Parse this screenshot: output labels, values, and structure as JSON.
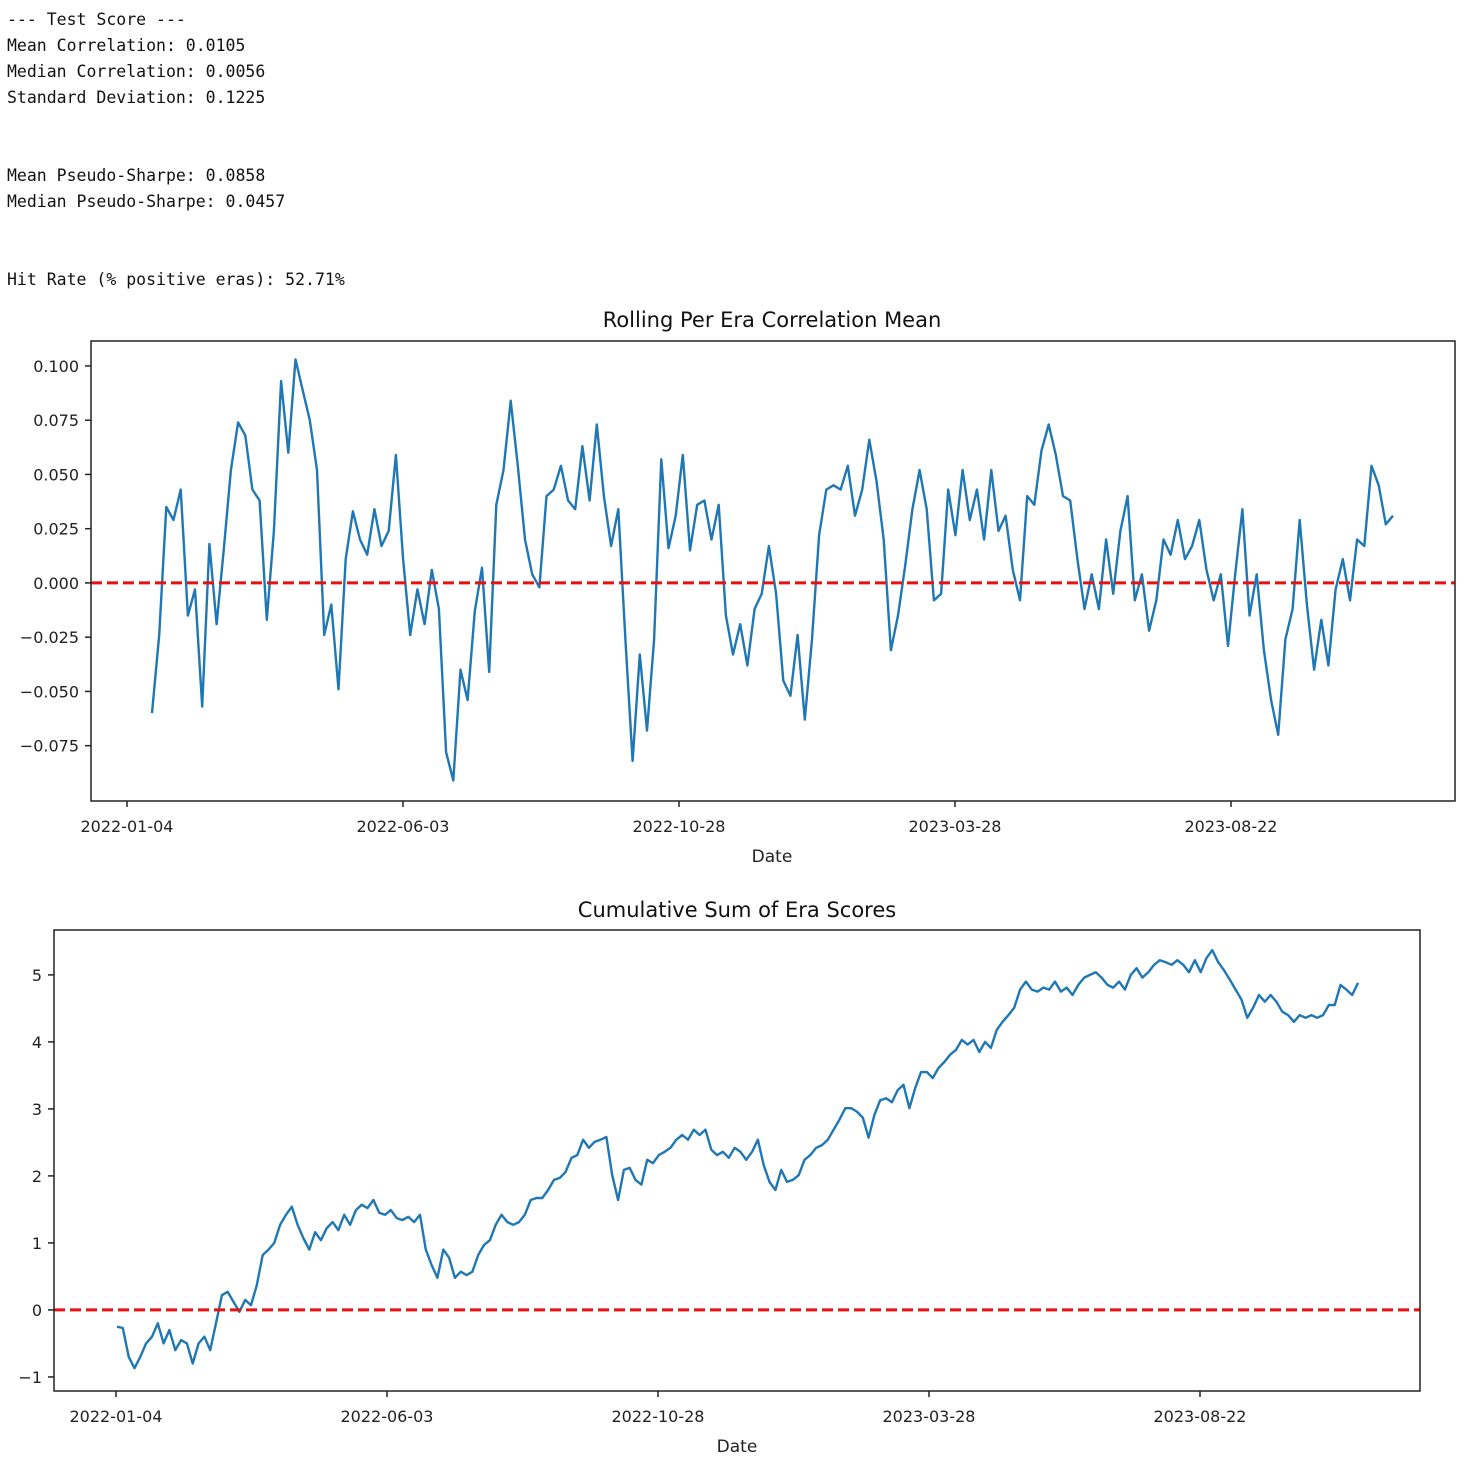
{
  "output_lines": [
    "--- Test Score ---",
    "Mean Correlation: 0.0105",
    "Median Correlation: 0.0056",
    "Standard Deviation: 0.1225",
    "",
    "",
    "Mean Pseudo-Sharpe: 0.0858",
    "Median Pseudo-Sharpe: 0.0457",
    "",
    "",
    "Hit Rate (% positive eras): 52.71%"
  ],
  "colors": {
    "line": "#1f77b4",
    "zero_line": "#e8110f",
    "axes": "#222222"
  },
  "chart_data": [
    {
      "type": "line",
      "title": "Rolling Per Era Correlation Mean",
      "xlabel": "Date",
      "ylabel": "",
      "ylim": [
        -0.1005,
        0.1115
      ],
      "x_ticks": [
        "2022-01-04",
        "2022-06-03",
        "2022-10-28",
        "2023-03-28",
        "2023-08-22"
      ],
      "y_ticks": [
        -0.075,
        -0.05,
        -0.025,
        0.0,
        0.025,
        0.05,
        0.075,
        0.1
      ],
      "y_tick_labels": [
        "−0.075",
        "−0.050",
        "−0.025",
        "0.000",
        "0.025",
        "0.050",
        "0.075",
        "0.100"
      ],
      "reference_line": {
        "y": 0,
        "style": "dashed",
        "color": "red"
      },
      "grid": false,
      "values": [
        -0.06,
        -0.024,
        0.035,
        0.029,
        0.043,
        -0.015,
        -0.003,
        -0.057,
        0.018,
        -0.019,
        0.015,
        0.052,
        0.074,
        0.068,
        0.043,
        0.038,
        -0.017,
        0.024,
        0.093,
        0.06,
        0.103,
        0.089,
        0.075,
        0.052,
        -0.024,
        -0.01,
        -0.049,
        0.011,
        0.033,
        0.02,
        0.013,
        0.034,
        0.017,
        0.024,
        0.059,
        0.011,
        -0.024,
        -0.003,
        -0.019,
        0.006,
        -0.012,
        -0.078,
        -0.091,
        -0.04,
        -0.054,
        -0.013,
        0.007,
        -0.041,
        0.036,
        0.052,
        0.084,
        0.054,
        0.02,
        0.004,
        -0.002,
        0.04,
        0.043,
        0.054,
        0.038,
        0.034,
        0.063,
        0.038,
        0.073,
        0.04,
        0.017,
        0.034,
        -0.026,
        -0.082,
        -0.033,
        -0.068,
        -0.026,
        0.057,
        0.016,
        0.031,
        0.059,
        0.015,
        0.036,
        0.038,
        0.02,
        0.036,
        -0.015,
        -0.033,
        -0.019,
        -0.038,
        -0.012,
        -0.005,
        0.017,
        -0.005,
        -0.045,
        -0.052,
        -0.024,
        -0.063,
        -0.026,
        0.022,
        0.043,
        0.045,
        0.043,
        0.054,
        0.031,
        0.043,
        0.066,
        0.047,
        0.02,
        -0.031,
        -0.015,
        0.008,
        0.034,
        0.052,
        0.034,
        -0.008,
        -0.005,
        0.043,
        0.022,
        0.052,
        0.029,
        0.043,
        0.02,
        0.052,
        0.024,
        0.031,
        0.006,
        -0.008,
        0.04,
        0.036,
        0.061,
        0.073,
        0.059,
        0.04,
        0.038,
        0.011,
        -0.012,
        0.004,
        -0.012,
        0.02,
        -0.005,
        0.024,
        0.04,
        -0.008,
        0.004,
        -0.022,
        -0.008,
        0.02,
        0.013,
        0.029,
        0.011,
        0.017,
        0.029,
        0.006,
        -0.008,
        0.004,
        -0.029,
        0.004,
        0.034,
        -0.015,
        0.004,
        -0.031,
        -0.054,
        -0.07,
        -0.026,
        -0.012,
        0.029,
        -0.01,
        -0.04,
        -0.017,
        -0.038,
        -0.003,
        0.011,
        -0.008,
        0.02,
        0.017,
        0.054,
        0.045,
        0.027,
        0.031
      ]
    },
    {
      "type": "line",
      "title": "Cumulative Sum of Era Scores",
      "xlabel": "Date",
      "ylabel": "",
      "ylim": [
        -1.21,
        5.67
      ],
      "x_ticks": [
        "2022-01-04",
        "2022-06-03",
        "2022-10-28",
        "2023-03-28",
        "2023-08-22"
      ],
      "y_ticks": [
        -1,
        0,
        1,
        2,
        3,
        4,
        5
      ],
      "y_tick_labels": [
        "−1",
        "0",
        "1",
        "2",
        "3",
        "4",
        "5"
      ],
      "reference_line": {
        "y": 0,
        "style": "dashed",
        "color": "red"
      },
      "grid": false,
      "values": [
        -0.25,
        -0.27,
        -0.7,
        -0.87,
        -0.7,
        -0.5,
        -0.4,
        -0.2,
        -0.5,
        -0.3,
        -0.6,
        -0.45,
        -0.5,
        -0.8,
        -0.5,
        -0.4,
        -0.6,
        -0.2,
        0.22,
        0.27,
        0.12,
        -0.03,
        0.15,
        0.07,
        0.37,
        0.82,
        0.9,
        1.0,
        1.27,
        1.42,
        1.54,
        1.27,
        1.07,
        0.9,
        1.16,
        1.04,
        1.22,
        1.31,
        1.19,
        1.42,
        1.27,
        1.49,
        1.57,
        1.52,
        1.64,
        1.45,
        1.42,
        1.49,
        1.37,
        1.34,
        1.39,
        1.31,
        1.42,
        0.9,
        0.67,
        0.48,
        0.9,
        0.78,
        0.48,
        0.57,
        0.52,
        0.57,
        0.82,
        0.97,
        1.04,
        1.27,
        1.42,
        1.31,
        1.27,
        1.31,
        1.42,
        1.64,
        1.67,
        1.67,
        1.79,
        1.94,
        1.97,
        2.06,
        2.27,
        2.31,
        2.54,
        2.42,
        2.51,
        2.54,
        2.58,
        2.01,
        1.64,
        2.09,
        2.12,
        1.94,
        1.87,
        2.24,
        2.19,
        2.31,
        2.36,
        2.42,
        2.54,
        2.61,
        2.54,
        2.69,
        2.61,
        2.69,
        2.39,
        2.31,
        2.36,
        2.27,
        2.42,
        2.36,
        2.24,
        2.36,
        2.54,
        2.16,
        1.91,
        1.79,
        2.09,
        1.91,
        1.94,
        2.01,
        2.24,
        2.31,
        2.42,
        2.46,
        2.54,
        2.69,
        2.84,
        3.01,
        3.01,
        2.96,
        2.87,
        2.57,
        2.91,
        3.13,
        3.16,
        3.1,
        3.28,
        3.36,
        3.01,
        3.31,
        3.55,
        3.55,
        3.46,
        3.61,
        3.7,
        3.81,
        3.88,
        4.03,
        3.96,
        4.03,
        3.85,
        4.0,
        3.91,
        4.18,
        4.3,
        4.4,
        4.51,
        4.78,
        4.9,
        4.78,
        4.75,
        4.81,
        4.78,
        4.9,
        4.75,
        4.81,
        4.7,
        4.85,
        4.96,
        5.0,
        5.04,
        4.96,
        4.85,
        4.81,
        4.9,
        4.78,
        5.0,
        5.1,
        4.96,
        5.04,
        5.15,
        5.22,
        5.19,
        5.15,
        5.22,
        5.15,
        5.04,
        5.22,
        5.04,
        5.25,
        5.37,
        5.19,
        5.07,
        4.93,
        4.78,
        4.63,
        4.36,
        4.51,
        4.7,
        4.6,
        4.7,
        4.6,
        4.45,
        4.4,
        4.3,
        4.4,
        4.36,
        4.4,
        4.36,
        4.4,
        4.55,
        4.55,
        4.85,
        4.78,
        4.7,
        4.88
      ]
    }
  ]
}
